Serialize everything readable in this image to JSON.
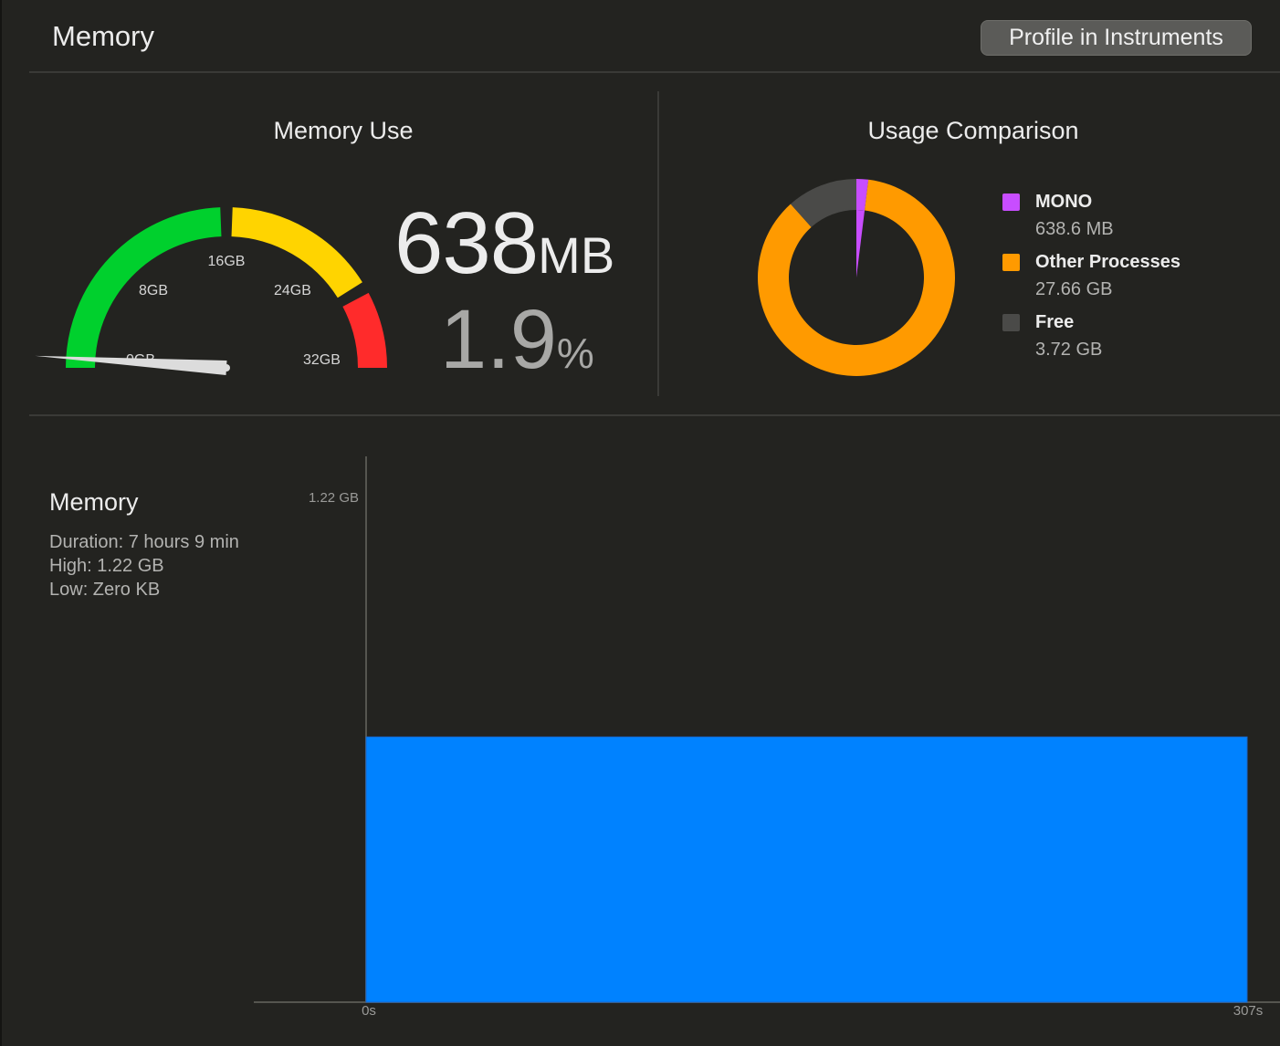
{
  "header": {
    "title": "Memory",
    "profile_button_label": "Profile in Instruments"
  },
  "memory_use": {
    "title": "Memory Use",
    "gauge": {
      "tick_labels": [
        "0GB",
        "8GB",
        "16GB",
        "24GB",
        "32GB"
      ],
      "scale_max_gb": 32,
      "value_gb": 0.638,
      "zone_colors": [
        "#00d02d",
        "#ffd400",
        "#ff2b2b"
      ]
    },
    "value_number": "638",
    "value_unit": "MB",
    "percent_number": "1.9",
    "percent_unit": "%"
  },
  "usage_comparison": {
    "title": "Usage Comparison",
    "legend": [
      {
        "name": "MONO",
        "value": "638.6 MB",
        "color": "#c84dff"
      },
      {
        "name": "Other Processes",
        "value": "27.66 GB",
        "color": "#ff9a00"
      },
      {
        "name": "Free",
        "value": "3.72 GB",
        "color": "#4a4a48"
      }
    ]
  },
  "memory_chart": {
    "title": "Memory",
    "duration": "Duration: 7 hours 9 min",
    "high": "High: 1.22 GB",
    "low": "Low: Zero KB",
    "bar_color": "#0082ff"
  },
  "chart_data": {
    "type": "area",
    "x": [
      0,
      307
    ],
    "y_gb": [
      0.64,
      0.64
    ],
    "x_tick_labels": [
      "0s",
      "307s"
    ],
    "y_tick_labels": [
      "1.22 GB"
    ],
    "xlim": [
      0,
      307
    ],
    "ylim": [
      0,
      1.22
    ],
    "grid": false
  }
}
